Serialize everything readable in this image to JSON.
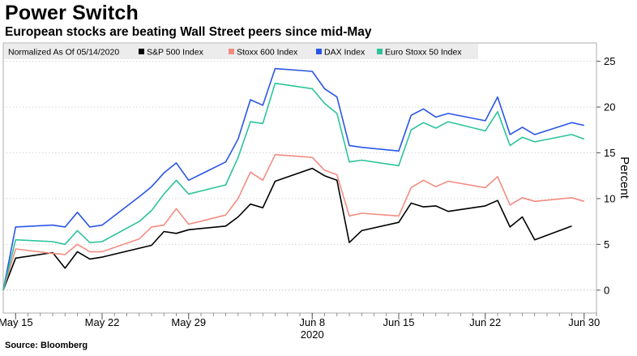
{
  "title": "Power Switch",
  "subtitle": "European stocks are beating Wall Street peers since mid-May",
  "source": "Source: Bloomberg",
  "chart_data": {
    "type": "line",
    "normalized_note": "Normalized As Of 05/14/2020",
    "ylabel": "Percent",
    "ylim": [
      -2.5,
      27
    ],
    "yticks": [
      0,
      5,
      10,
      15,
      20,
      25
    ],
    "xlim": [
      "2020-05-14",
      "2020-07-01"
    ],
    "xticks": [
      {
        "date": "2020-05-15",
        "label": "May 15"
      },
      {
        "date": "2020-05-22",
        "label": "May 22"
      },
      {
        "date": "2020-05-29",
        "label": "May 29"
      },
      {
        "date": "2020-06-08",
        "label": "Jun 8",
        "sublabel": "2020"
      },
      {
        "date": "2020-06-15",
        "label": "Jun 15"
      },
      {
        "date": "2020-06-22",
        "label": "Jun 22"
      },
      {
        "date": "2020-06-30",
        "label": "Jun 30"
      }
    ],
    "legend_position": "top-left",
    "x": [
      "2020-05-14",
      "2020-05-15",
      "2020-05-18",
      "2020-05-19",
      "2020-05-20",
      "2020-05-21",
      "2020-05-22",
      "2020-05-25",
      "2020-05-26",
      "2020-05-27",
      "2020-05-28",
      "2020-05-29",
      "2020-06-01",
      "2020-06-02",
      "2020-06-03",
      "2020-06-04",
      "2020-06-05",
      "2020-06-08",
      "2020-06-09",
      "2020-06-10",
      "2020-06-11",
      "2020-06-12",
      "2020-06-15",
      "2020-06-16",
      "2020-06-17",
      "2020-06-18",
      "2020-06-19",
      "2020-06-22",
      "2020-06-23",
      "2020-06-24",
      "2020-06-25",
      "2020-06-26",
      "2020-06-29",
      "2020-06-30"
    ],
    "series": [
      {
        "name": "S&P 500 Index",
        "color": "#000000",
        "values": [
          0,
          3.5,
          4.1,
          2.4,
          4.2,
          3.4,
          3.6,
          null,
          4.9,
          6.4,
          6.2,
          6.6,
          7.0,
          8.0,
          9.4,
          9.0,
          11.9,
          13.3,
          12.5,
          12.0,
          5.2,
          6.5,
          7.4,
          9.5,
          9.1,
          9.2,
          8.6,
          9.2,
          9.8,
          6.9,
          8.0,
          5.5,
          7.0,
          null
        ]
      },
      {
        "name": "Stoxx 600 Index",
        "color": "#f28c82",
        "values": [
          0,
          4.5,
          4.0,
          3.9,
          5.0,
          4.2,
          4.2,
          5.6,
          6.9,
          7.1,
          8.9,
          7.2,
          8.2,
          10.0,
          12.9,
          12.0,
          14.8,
          14.5,
          13.1,
          12.6,
          8.1,
          8.4,
          8.1,
          11.2,
          12.0,
          11.3,
          11.9,
          11.2,
          12.4,
          9.3,
          10.1,
          9.7,
          10.1,
          9.7
        ]
      },
      {
        "name": "DAX Index",
        "color": "#2a56e6",
        "values": [
          0,
          6.9,
          7.1,
          6.9,
          8.5,
          6.9,
          7.1,
          10.2,
          11.3,
          12.8,
          13.9,
          12.0,
          14.0,
          16.5,
          20.8,
          20.2,
          24.2,
          23.9,
          22.0,
          21.1,
          15.8,
          15.6,
          15.2,
          19.1,
          19.8,
          18.9,
          19.3,
          18.5,
          21.1,
          17.0,
          17.8,
          17.0,
          18.3,
          18.0
        ]
      },
      {
        "name": "Euro Stoxx 50 Index",
        "color": "#2cc39b",
        "values": [
          0,
          5.5,
          5.3,
          5.0,
          6.5,
          5.2,
          5.3,
          7.5,
          8.7,
          10.5,
          12.0,
          10.5,
          11.5,
          14.5,
          18.4,
          18.2,
          22.6,
          22.0,
          20.4,
          19.3,
          14.0,
          14.2,
          13.6,
          17.5,
          18.3,
          17.7,
          18.4,
          17.4,
          19.5,
          15.8,
          16.7,
          16.2,
          17.0,
          16.5
        ]
      }
    ]
  }
}
